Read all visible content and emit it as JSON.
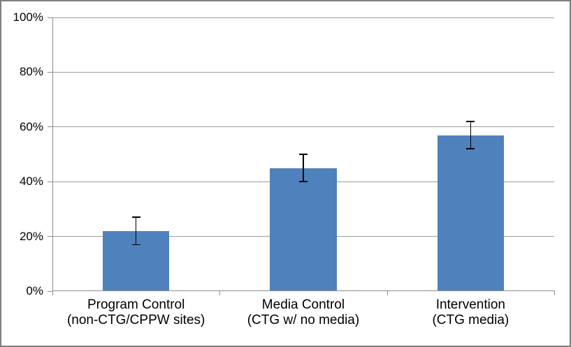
{
  "chart_data": {
    "type": "bar",
    "title": "",
    "xlabel": "",
    "ylabel": "",
    "categories": [
      [
        "Program Control",
        "(non-CTG/CPPW sites)"
      ],
      [
        "Media Control",
        "(CTG w/ no media)"
      ],
      [
        "Intervention",
        "(CTG media)"
      ]
    ],
    "values": [
      22,
      45,
      57
    ],
    "value_unit": "percent",
    "error_bars": {
      "plus": [
        5,
        5,
        5
      ],
      "minus": [
        5,
        5,
        5
      ]
    },
    "ylim": [
      0,
      100
    ],
    "y_ticks": [
      {
        "value": 0,
        "label": "0%"
      },
      {
        "value": 20,
        "label": "20%"
      },
      {
        "value": 40,
        "label": "40%"
      },
      {
        "value": 60,
        "label": "60%"
      },
      {
        "value": 80,
        "label": "80%"
      },
      {
        "value": 100,
        "label": "100%"
      }
    ],
    "grid": true,
    "legend": "none",
    "colors": {
      "bar_fill": "#4F81BD",
      "gridline": "#9C9C9C",
      "axis_line": "#8C8C8C",
      "error_bar": "#000000",
      "text": "#000000",
      "frame": "#808080",
      "background": "#FFFFFF"
    }
  }
}
